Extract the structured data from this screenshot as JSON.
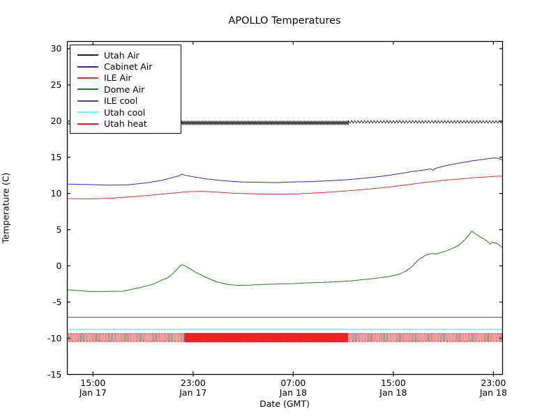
{
  "figure": {
    "title": "APOLLO Temperatures",
    "background": "#ffffff",
    "frame_color": "#000000"
  },
  "chart_data": {
    "type": "line",
    "title": "APOLLO Temperatures",
    "xlabel": "Date (GMT)",
    "ylabel": "Temperature (C)",
    "ylim": [
      -15,
      31
    ],
    "grid": false,
    "legend_position": "upper left",
    "yticks": [
      30,
      25,
      20,
      15,
      10,
      5,
      0,
      -5,
      -10,
      -15
    ],
    "xticks": [
      {
        "time": "15:00",
        "date": "Jan 17",
        "frac": 0.059
      },
      {
        "time": "23:00",
        "date": "Jan 17",
        "frac": 0.289
      },
      {
        "time": "07:00",
        "date": "Jan 18",
        "frac": 0.519
      },
      {
        "time": "15:00",
        "date": "Jan 18",
        "frac": 0.749
      },
      {
        "time": "23:00",
        "date": "Jan 18",
        "frac": 0.979
      }
    ],
    "series": [
      {
        "name": "Utah Air",
        "color": "#222222",
        "kind": "zigzag",
        "segments": [
          {
            "from": 0.0,
            "to": 0.224,
            "center": 19.7,
            "amp": 0.18,
            "period": 4.8
          },
          {
            "from": 0.224,
            "to": 0.646,
            "center": 19.75,
            "amp": 0.27,
            "period": 2.0
          },
          {
            "from": 0.646,
            "to": 1.0,
            "center": 19.9,
            "amp": 0.18,
            "period": 4.6
          }
        ]
      },
      {
        "name": "Cabinet Air",
        "color": "#2a2ad0",
        "kind": "poly",
        "points": [
          [
            0,
            11.3
          ],
          [
            0.04,
            11.25
          ],
          [
            0.1,
            11.15
          ],
          [
            0.14,
            11.2
          ],
          [
            0.18,
            11.45
          ],
          [
            0.22,
            11.85
          ],
          [
            0.25,
            12.35
          ],
          [
            0.258,
            12.45
          ],
          [
            0.262,
            12.7
          ],
          [
            0.268,
            12.55
          ],
          [
            0.29,
            12.3
          ],
          [
            0.32,
            12.0
          ],
          [
            0.36,
            11.75
          ],
          [
            0.4,
            11.6
          ],
          [
            0.44,
            11.55
          ],
          [
            0.48,
            11.5
          ],
          [
            0.52,
            11.6
          ],
          [
            0.56,
            11.65
          ],
          [
            0.6,
            11.75
          ],
          [
            0.64,
            11.9
          ],
          [
            0.68,
            12.1
          ],
          [
            0.72,
            12.35
          ],
          [
            0.76,
            12.7
          ],
          [
            0.79,
            13.0
          ],
          [
            0.82,
            13.25
          ],
          [
            0.835,
            13.4
          ],
          [
            0.84,
            13.2
          ],
          [
            0.845,
            13.45
          ],
          [
            0.87,
            13.85
          ],
          [
            0.9,
            14.2
          ],
          [
            0.93,
            14.5
          ],
          [
            0.96,
            14.75
          ],
          [
            0.98,
            14.9
          ],
          [
            0.99,
            14.85
          ],
          [
            1.0,
            14.6
          ]
        ]
      },
      {
        "name": "ILE Air",
        "color": "#d93030",
        "kind": "poly",
        "points": [
          [
            0,
            9.3
          ],
          [
            0.05,
            9.25
          ],
          [
            0.1,
            9.35
          ],
          [
            0.15,
            9.55
          ],
          [
            0.2,
            9.8
          ],
          [
            0.24,
            10.05
          ],
          [
            0.28,
            10.25
          ],
          [
            0.31,
            10.3
          ],
          [
            0.34,
            10.2
          ],
          [
            0.38,
            10.05
          ],
          [
            0.43,
            9.95
          ],
          [
            0.48,
            9.9
          ],
          [
            0.53,
            9.95
          ],
          [
            0.58,
            10.1
          ],
          [
            0.62,
            10.25
          ],
          [
            0.66,
            10.45
          ],
          [
            0.7,
            10.65
          ],
          [
            0.74,
            10.9
          ],
          [
            0.78,
            11.2
          ],
          [
            0.82,
            11.5
          ],
          [
            0.86,
            11.8
          ],
          [
            0.9,
            12.0
          ],
          [
            0.94,
            12.2
          ],
          [
            0.98,
            12.35
          ],
          [
            1.0,
            12.4
          ]
        ]
      },
      {
        "name": "Dome Air",
        "color": "#1e7d1e",
        "kind": "poly",
        "points": [
          [
            0,
            -3.3
          ],
          [
            0.055,
            -3.55
          ],
          [
            0.127,
            -3.5
          ],
          [
            0.167,
            -3.0
          ],
          [
            0.199,
            -2.5
          ],
          [
            0.223,
            -1.8
          ],
          [
            0.228,
            -1.75
          ],
          [
            0.234,
            -1.5
          ],
          [
            0.247,
            -0.8
          ],
          [
            0.26,
            0.05
          ],
          [
            0.266,
            0.15
          ],
          [
            0.276,
            -0.2
          ],
          [
            0.295,
            -0.9
          ],
          [
            0.319,
            -1.6
          ],
          [
            0.343,
            -2.2
          ],
          [
            0.367,
            -2.55
          ],
          [
            0.391,
            -2.7
          ],
          [
            0.423,
            -2.65
          ],
          [
            0.455,
            -2.55
          ],
          [
            0.487,
            -2.5
          ],
          [
            0.519,
            -2.45
          ],
          [
            0.551,
            -2.35
          ],
          [
            0.583,
            -2.3
          ],
          [
            0.615,
            -2.2
          ],
          [
            0.647,
            -2.1
          ],
          [
            0.679,
            -1.9
          ],
          [
            0.712,
            -1.7
          ],
          [
            0.736,
            -1.5
          ],
          [
            0.76,
            -1.2
          ],
          [
            0.776,
            -0.8
          ],
          [
            0.792,
            -0.1
          ],
          [
            0.808,
            0.9
          ],
          [
            0.824,
            1.5
          ],
          [
            0.837,
            1.7
          ],
          [
            0.848,
            1.65
          ],
          [
            0.856,
            1.8
          ],
          [
            0.872,
            2.1
          ],
          [
            0.888,
            2.5
          ],
          [
            0.901,
            2.9
          ],
          [
            0.913,
            3.6
          ],
          [
            0.923,
            4.3
          ],
          [
            0.929,
            4.8
          ],
          [
            0.936,
            4.5
          ],
          [
            0.946,
            4.1
          ],
          [
            0.955,
            3.8
          ],
          [
            0.965,
            3.4
          ],
          [
            0.971,
            3.0
          ],
          [
            0.976,
            3.25
          ],
          [
            0.987,
            3.1
          ],
          [
            0.994,
            2.8
          ],
          [
            1.0,
            2.55
          ]
        ]
      },
      {
        "name": "ILE cool",
        "color": "#45457d",
        "kind": "poly",
        "points": [
          [
            0,
            -7.1
          ],
          [
            1,
            -7.1
          ]
        ]
      },
      {
        "name": "Utah cool",
        "color": "#6ef3f3",
        "kind": "poly",
        "points": [
          [
            0,
            -8.75
          ],
          [
            1,
            -8.75
          ]
        ]
      },
      {
        "name": "Utah heat",
        "color": "#e81818",
        "kind": "square",
        "segments": [
          {
            "from": 0.0,
            "to": 0.27,
            "top": -9.35,
            "bottom": -10.45,
            "period": 4.2
          },
          {
            "from": 0.27,
            "to": 0.645,
            "top": -9.3,
            "bottom": -10.5,
            "period": 1.9
          },
          {
            "from": 0.645,
            "to": 1.0,
            "top": -9.35,
            "bottom": -10.45,
            "period": 4.2
          }
        ]
      }
    ]
  }
}
